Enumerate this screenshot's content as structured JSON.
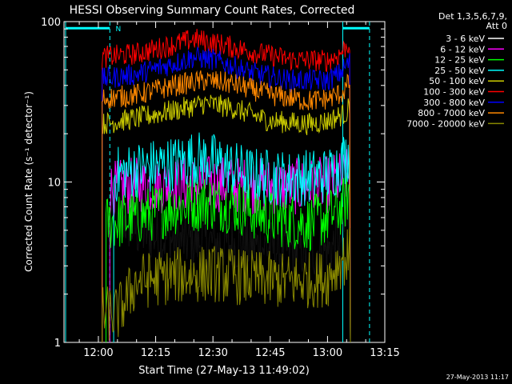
{
  "chart_data": {
    "type": "line",
    "title": "HESSI Observing Summary Count Rates, Corrected",
    "xlabel": "Start Time (27-May-13 11:49:02)",
    "ylabel": "Corrected Count Rate (s⁻¹ detector⁻¹)",
    "y_scale": "log",
    "ylim": [
      1,
      100
    ],
    "x_range_minutes": [
      -9,
      75
    ],
    "x_ticks": [
      {
        "label": "12:00",
        "minute": 0
      },
      {
        "label": "12:15",
        "minute": 15
      },
      {
        "label": "12:30",
        "minute": 30
      },
      {
        "label": "12:45",
        "minute": 45
      },
      {
        "label": "13:00",
        "minute": 60
      },
      {
        "label": "13:15",
        "minute": 75
      }
    ],
    "y_ticks": [
      {
        "label": "1",
        "value": 1
      },
      {
        "label": "10",
        "value": 10
      },
      {
        "label": "100",
        "value": 100
      }
    ],
    "legend_header": [
      "Det 1,3,5,6,7,9,",
      "Att 0"
    ],
    "legend_placement": "right",
    "series": [
      {
        "name": "3 - 6 keV",
        "color": "#000000",
        "points": [
          [
            4,
            7
          ],
          [
            6,
            6
          ],
          [
            10,
            5
          ],
          [
            20,
            4.3
          ],
          [
            30,
            4.2
          ],
          [
            40,
            4
          ],
          [
            50,
            3.8
          ],
          [
            60,
            3.7
          ],
          [
            63,
            4.2
          ],
          [
            66,
            6
          ]
        ]
      },
      {
        "name": "6 - 12 keV",
        "color": "#ff00ff",
        "points": [
          [
            3,
            9
          ],
          [
            10,
            9.5
          ],
          [
            20,
            9.6
          ],
          [
            30,
            9.8
          ],
          [
            40,
            9.5
          ],
          [
            50,
            9.3
          ],
          [
            60,
            9.6
          ],
          [
            63,
            10.3
          ],
          [
            66,
            11
          ]
        ]
      },
      {
        "name": "12 - 25 keV",
        "color": "#00ff00",
        "points": [
          [
            2,
            5.5
          ],
          [
            10,
            6
          ],
          [
            20,
            7
          ],
          [
            28,
            7.5
          ],
          [
            35,
            7.2
          ],
          [
            45,
            6
          ],
          [
            55,
            5.5
          ],
          [
            60,
            6
          ],
          [
            64,
            7
          ],
          [
            66,
            9
          ]
        ]
      },
      {
        "name": "25 - 50 keV",
        "color": "#00ffff",
        "points": [
          [
            4,
            11
          ],
          [
            10,
            12
          ],
          [
            20,
            13
          ],
          [
            25,
            14
          ],
          [
            30,
            13.5
          ],
          [
            40,
            11
          ],
          [
            50,
            10.5
          ],
          [
            60,
            11
          ],
          [
            64,
            13.5
          ],
          [
            66,
            16
          ]
        ]
      },
      {
        "name": "50 - 100 keV",
        "color": "#cccc00",
        "points": [
          [
            1,
            23
          ],
          [
            10,
            25
          ],
          [
            20,
            28
          ],
          [
            28,
            31
          ],
          [
            35,
            29
          ],
          [
            45,
            24
          ],
          [
            55,
            23
          ],
          [
            60,
            24
          ],
          [
            65,
            27
          ],
          [
            66,
            31
          ]
        ]
      },
      {
        "name": "100 - 300 keV",
        "color": "#ff0000",
        "points": [
          [
            1,
            60
          ],
          [
            10,
            63
          ],
          [
            20,
            72
          ],
          [
            25,
            78
          ],
          [
            30,
            74
          ],
          [
            40,
            65
          ],
          [
            50,
            58
          ],
          [
            60,
            57
          ],
          [
            63,
            62
          ],
          [
            66,
            75
          ]
        ]
      },
      {
        "name": "300 - 800 keV",
        "color": "#0000ff",
        "points": [
          [
            1,
            44
          ],
          [
            10,
            47
          ],
          [
            20,
            55
          ],
          [
            25,
            60
          ],
          [
            30,
            58
          ],
          [
            40,
            48
          ],
          [
            50,
            43
          ],
          [
            60,
            43
          ],
          [
            63,
            47
          ],
          [
            66,
            57
          ]
        ]
      },
      {
        "name": "800 - 7000 keV",
        "color": "#ff8800",
        "points": [
          [
            1,
            33
          ],
          [
            10,
            35
          ],
          [
            20,
            40
          ],
          [
            28,
            43
          ],
          [
            35,
            41
          ],
          [
            45,
            35
          ],
          [
            55,
            32
          ],
          [
            60,
            33
          ],
          [
            64,
            36
          ],
          [
            66,
            43
          ]
        ]
      },
      {
        "name": "7000 - 20000 keV",
        "color": "#888800",
        "points": [
          [
            1,
            1.5
          ],
          [
            5,
            1.5
          ],
          [
            10,
            2.4
          ],
          [
            20,
            2.6
          ],
          [
            30,
            2.7
          ],
          [
            40,
            2.5
          ],
          [
            50,
            2.4
          ],
          [
            60,
            2.5
          ],
          [
            63,
            3.2
          ],
          [
            66,
            3.5
          ]
        ]
      }
    ],
    "flag_bar": {
      "label": "N",
      "color": "#00ffff",
      "value": 91
    },
    "footer_date": "27-May-2013 11:17"
  }
}
